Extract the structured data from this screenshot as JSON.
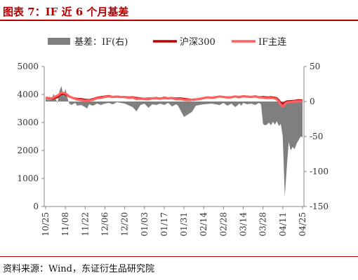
{
  "figure": {
    "title": "图表 7：IF 近 6 个月基差",
    "source": "资料来源：Wind，东证衍生品研究院"
  },
  "colors": {
    "basis_area": "#7f7f7f",
    "index_line": "#c00000",
    "futures_line": "#ff6161",
    "title": "#b40000"
  },
  "chart_data": {
    "type": "line",
    "legend": [
      "基差：IF(右)",
      "沪深300",
      "IF主连"
    ],
    "legend_position": "top",
    "grid": false,
    "y_left": {
      "lim": [
        0,
        5000
      ],
      "ticks": [
        "0",
        "1000",
        "2000",
        "3000",
        "4000",
        "5000"
      ]
    },
    "y_right": {
      "lim": [
        -150,
        50
      ],
      "ticks": [
        "-150",
        "-100",
        "-50",
        "0",
        "50"
      ]
    },
    "x_tick_labels": [
      "10/25",
      "11/08",
      "11/22",
      "12/06",
      "12/20",
      "01/03",
      "01/17",
      "01/31",
      "02/14",
      "02/28",
      "03/14",
      "03/28",
      "04/11",
      "04/25"
    ],
    "x_tick_positions": [
      0,
      10,
      20,
      30,
      40,
      50,
      60,
      70,
      80,
      90,
      100,
      110,
      120,
      130
    ],
    "x_count": 131,
    "basis_right_axis": {
      "name": "基差：IF(右)",
      "x": [
        0,
        3,
        4,
        6,
        7,
        8,
        9,
        10,
        11,
        12,
        13,
        15,
        16,
        18,
        20,
        21,
        22,
        24,
        26,
        28,
        30,
        32,
        34,
        36,
        40,
        44,
        46,
        48,
        50,
        52,
        54,
        56,
        58,
        60,
        62,
        64,
        66,
        67,
        70,
        74,
        76,
        80,
        84,
        88,
        90,
        92,
        94,
        96,
        98,
        99,
        100,
        102,
        104,
        106,
        108,
        109,
        110,
        111,
        112,
        113,
        114,
        115,
        116,
        117,
        118,
        119,
        120,
        121,
        122,
        123,
        124,
        125,
        126,
        127,
        128,
        129,
        130
      ],
      "y": [
        3,
        2,
        11,
        -2,
        15,
        22,
        7,
        18,
        5,
        -3,
        -5,
        -2,
        -6,
        -5,
        -8,
        -10,
        -4,
        -6,
        -3,
        -5,
        -3,
        -2,
        -4,
        -1,
        -3,
        -8,
        -14,
        -5,
        -3,
        -9,
        -4,
        -5,
        -3,
        -5,
        -2,
        -7,
        -4,
        -6,
        -22,
        -15,
        -6,
        -4,
        -3,
        -5,
        -2,
        -6,
        -3,
        -8,
        -3,
        -6,
        -2,
        -4,
        -3,
        -5,
        -2,
        -4,
        -32,
        -34,
        -33,
        -30,
        -34,
        -29,
        -33,
        -28,
        -35,
        -32,
        -50,
        -136,
        -95,
        -58,
        -70,
        -65,
        -68,
        -60,
        -55,
        -50,
        -51
      ]
    },
    "series": [
      {
        "name": "沪深300",
        "x": [
          0,
          3,
          6,
          8,
          10,
          12,
          14,
          16,
          18,
          20,
          22,
          24,
          26,
          28,
          30,
          32,
          34,
          36,
          38,
          40,
          42,
          44,
          46,
          48,
          50,
          52,
          54,
          56,
          58,
          60,
          62,
          64,
          66,
          68,
          70,
          72,
          74,
          76,
          78,
          80,
          82,
          84,
          86,
          88,
          90,
          92,
          94,
          96,
          98,
          100,
          102,
          104,
          106,
          108,
          110,
          112,
          114,
          116,
          117,
          118,
          119,
          120,
          121,
          122,
          124,
          126,
          128,
          130
        ],
        "y": [
          3870,
          3840,
          3900,
          4020,
          4000,
          3920,
          3880,
          3850,
          3840,
          3820,
          3810,
          3840,
          3890,
          3910,
          3930,
          3950,
          3920,
          3930,
          3920,
          3920,
          3900,
          3910,
          3880,
          3870,
          3850,
          3860,
          3870,
          3880,
          3860,
          3890,
          3870,
          3880,
          3860,
          3870,
          3850,
          3830,
          3820,
          3830,
          3850,
          3880,
          3900,
          3890,
          3910,
          3930,
          3920,
          3900,
          3910,
          3930,
          3920,
          3940,
          3930,
          3920,
          3940,
          3910,
          3920,
          3900,
          3910,
          3890,
          3870,
          3800,
          3710,
          3650,
          3720,
          3760,
          3770,
          3780,
          3800,
          3790
        ]
      },
      {
        "name": "IF主连",
        "x": [
          0,
          3,
          6,
          8,
          10,
          12,
          14,
          16,
          18,
          20,
          22,
          24,
          26,
          28,
          30,
          32,
          34,
          36,
          38,
          40,
          42,
          44,
          46,
          48,
          50,
          52,
          54,
          56,
          58,
          60,
          62,
          64,
          66,
          68,
          70,
          72,
          74,
          76,
          78,
          80,
          82,
          84,
          86,
          88,
          90,
          92,
          94,
          96,
          98,
          100,
          102,
          104,
          106,
          108,
          110,
          112,
          114,
          116,
          117,
          118,
          119,
          120,
          121,
          122,
          124,
          126,
          128,
          130
        ],
        "y": [
          3890,
          3860,
          3960,
          4070,
          4040,
          3930,
          3870,
          3820,
          3800,
          3780,
          3790,
          3810,
          3870,
          3880,
          3910,
          3930,
          3910,
          3920,
          3910,
          3910,
          3880,
          3890,
          3840,
          3850,
          3840,
          3830,
          3860,
          3860,
          3850,
          3870,
          3860,
          3870,
          3830,
          3840,
          3810,
          3800,
          3810,
          3820,
          3840,
          3870,
          3900,
          3880,
          3900,
          3930,
          3910,
          3890,
          3900,
          3930,
          3900,
          3940,
          3920,
          3910,
          3930,
          3900,
          3890,
          3870,
          3880,
          3860,
          3830,
          3750,
          3640,
          3570,
          3660,
          3720,
          3730,
          3750,
          3760,
          3760
        ]
      }
    ]
  }
}
